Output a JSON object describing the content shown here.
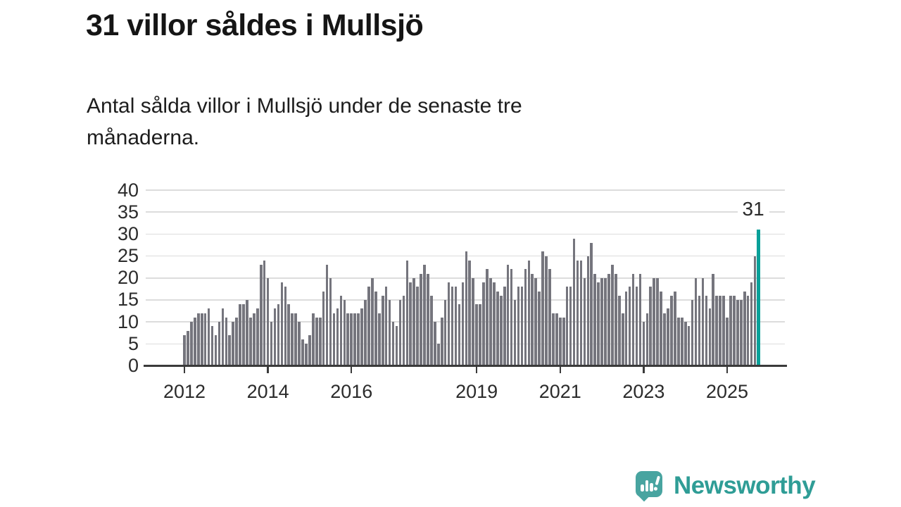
{
  "header": {
    "title": "31 villor såldes i Mullsjö",
    "subtitle": "Antal sålda villor i Mullsjö under de senaste tre månaderna."
  },
  "chart_data": {
    "type": "bar",
    "title": "31 villor såldes i Mullsjö",
    "subtitle": "Antal sålda villor i Mullsjö under de senaste tre månaderna.",
    "ylabel": "",
    "xlabel": "",
    "ylim": [
      0,
      40
    ],
    "yticks": [
      0,
      5,
      10,
      15,
      20,
      25,
      30,
      35,
      40
    ],
    "grid": "horizontal",
    "start_month": "2012-01",
    "end_month": "2025-10",
    "values": [
      7,
      8,
      10,
      11,
      12,
      12,
      12,
      13,
      9,
      7,
      10,
      13,
      11,
      7,
      10,
      11,
      14,
      14,
      15,
      11,
      12,
      13,
      23,
      24,
      20,
      10,
      13,
      14,
      19,
      18,
      14,
      12,
      12,
      10,
      6,
      5,
      7,
      12,
      11,
      11,
      17,
      23,
      20,
      12,
      13,
      16,
      15,
      12,
      12,
      12,
      12,
      13,
      15,
      18,
      20,
      17,
      12,
      16,
      18,
      15,
      10,
      9,
      15,
      16,
      24,
      19,
      20,
      18,
      21,
      23,
      21,
      16,
      10,
      5,
      11,
      15,
      19,
      18,
      18,
      14,
      19,
      26,
      24,
      20,
      14,
      14,
      19,
      22,
      20,
      19,
      17,
      16,
      18,
      23,
      22,
      15,
      18,
      18,
      22,
      24,
      21,
      20,
      17,
      26,
      25,
      22,
      12,
      12,
      11,
      11,
      18,
      18,
      29,
      24,
      24,
      20,
      25,
      28,
      21,
      19,
      20,
      20,
      21,
      23,
      21,
      16,
      12,
      17,
      18,
      21,
      18,
      21,
      10,
      12,
      18,
      20,
      20,
      17,
      12,
      13,
      16,
      17,
      11,
      11,
      10,
      9,
      15,
      20,
      16,
      20,
      16,
      13,
      21,
      16,
      16,
      16,
      11,
      16,
      16,
      15,
      15,
      17,
      16,
      19,
      25,
      31
    ],
    "xticks": [
      {
        "label": "2012",
        "month_index": 0
      },
      {
        "label": "2014",
        "month_index": 24
      },
      {
        "label": "2016",
        "month_index": 48
      },
      {
        "label": "2019",
        "month_index": 84
      },
      {
        "label": "2021",
        "month_index": 108
      },
      {
        "label": "2023",
        "month_index": 132
      },
      {
        "label": "2025",
        "month_index": 156
      }
    ],
    "highlight": {
      "index": 165,
      "value": 31,
      "label": "31",
      "color": "#09a099"
    },
    "bar_color": "#75757d",
    "gridline_color": "#dcdcdc",
    "axis_color": "#3a3a3a"
  },
  "footer": {
    "brand": "Newsworthy",
    "brand_color": "#2f9d96",
    "logo_color": "#48a4a0"
  }
}
